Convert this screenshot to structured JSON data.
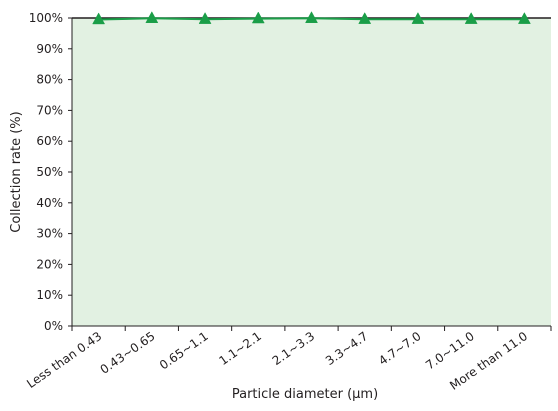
{
  "chart_data": {
    "type": "line",
    "title": "",
    "xlabel": "Particle diameter (μm)",
    "ylabel": "Collection rate (%)",
    "categories": [
      "Less than 0.43",
      "0.43~0.65",
      "0.65~1.1",
      "1.1~2.1",
      "2.1~3.3",
      "3.3~4.7",
      "4.7~7.0",
      "7.0~11.0",
      "More than 11.0"
    ],
    "series": [
      {
        "values": [
          99.5,
          99.9,
          99.6,
          99.8,
          99.9,
          99.6,
          99.6,
          99.6,
          99.6
        ],
        "color": "#1a9e48",
        "marker": "triangle"
      }
    ],
    "ylim": [
      0,
      100
    ],
    "yticks": [
      0,
      10,
      20,
      30,
      40,
      50,
      60,
      70,
      80,
      90,
      100
    ],
    "ytick_labels": [
      "0%",
      "10%",
      "20%",
      "30%",
      "40%",
      "50%",
      "60%",
      "70%",
      "80%",
      "90%",
      "100%"
    ],
    "fill_color": "#e2f1e2",
    "line_color": "#231f20",
    "grid": false,
    "legend": "none"
  }
}
